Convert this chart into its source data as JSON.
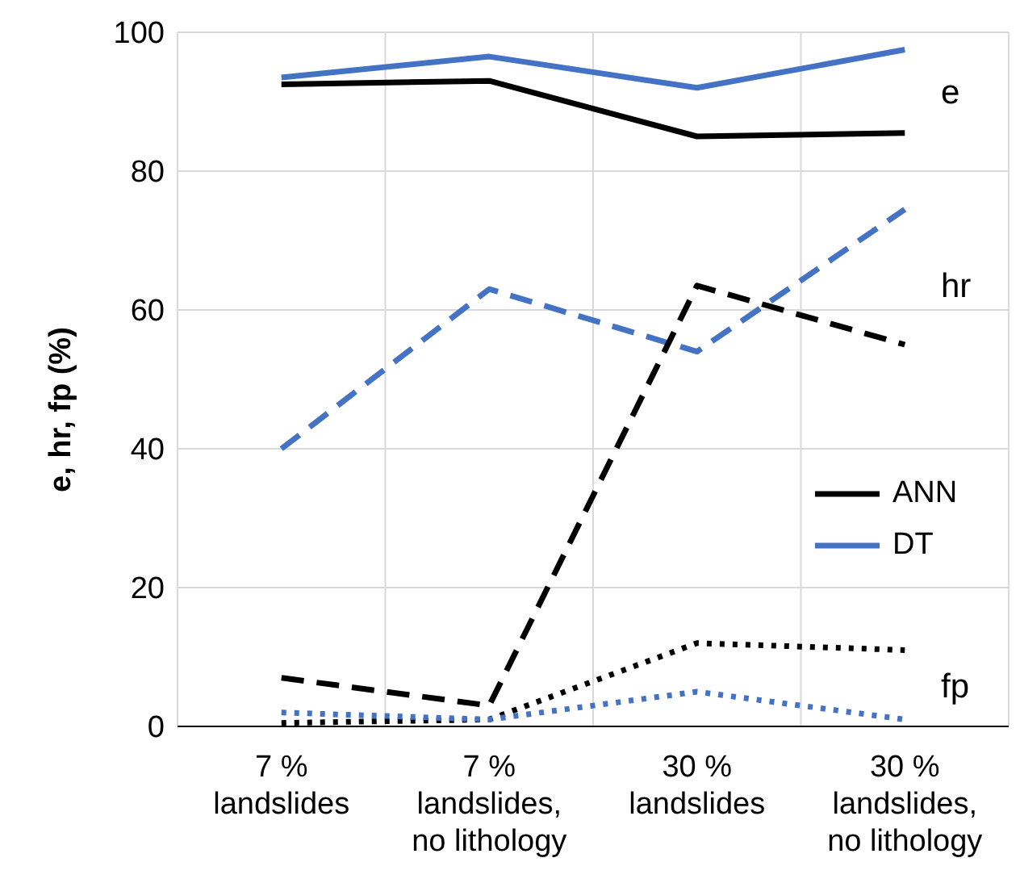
{
  "chart_data": {
    "type": "line",
    "ylabel": "e, hr, fp (%)",
    "categories": [
      "7 % landslides",
      "7 % landslides, no lithology",
      "30 % landslides",
      "30 % landslides, no lithology"
    ],
    "series": [
      {
        "name": "ANN",
        "color": "#000000",
        "line_style": "solid",
        "values": [
          92.5,
          93,
          85,
          85.5
        ]
      },
      {
        "name": "DT",
        "color": "#4472c4",
        "line_style": "solid",
        "values": [
          93.5,
          96.5,
          92,
          97.5
        ]
      },
      {
        "color": "#4472c4",
        "line_style": "dashed",
        "values": [
          40,
          63,
          54,
          74.5
        ]
      },
      {
        "color": "#000000",
        "line_style": "dashed",
        "values": [
          7,
          3,
          63.5,
          55
        ]
      },
      {
        "color": "#000000",
        "line_style": "dotted",
        "values": [
          0.5,
          1,
          12,
          11
        ]
      },
      {
        "color": "#4472c4",
        "line_style": "dotted",
        "values": [
          2,
          1,
          5,
          1
        ]
      }
    ],
    "ylim": [
      0,
      100
    ],
    "yticks": [
      0,
      20,
      40,
      60,
      80,
      100
    ],
    "grid": true,
    "legend": "right",
    "marker": "none",
    "annotations": [
      "e",
      "hr",
      "fp"
    ]
  }
}
